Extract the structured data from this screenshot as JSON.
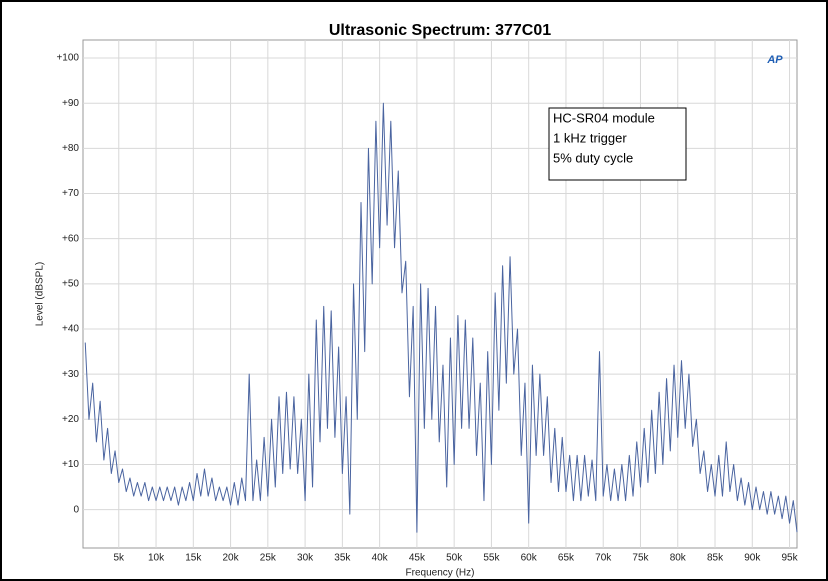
{
  "chart_data": {
    "type": "line",
    "title": "Ultrasonic Spectrum: 377C01",
    "xlabel": "Frequency (Hz)",
    "ylabel": "Level (dBSPL)",
    "logo": "AP",
    "annotation": [
      "HC-SR04 module",
      "1 kHz trigger",
      "5% duty cycle"
    ],
    "color": "#4a64a0",
    "grid": true,
    "xlim": [
      200,
      96000
    ],
    "ylim": [
      -8.5,
      104
    ],
    "xticks": [
      {
        "value": 5000,
        "label": "5k"
      },
      {
        "value": 10000,
        "label": "10k"
      },
      {
        "value": 15000,
        "label": "15k"
      },
      {
        "value": 20000,
        "label": "20k"
      },
      {
        "value": 25000,
        "label": "25k"
      },
      {
        "value": 30000,
        "label": "30k"
      },
      {
        "value": 35000,
        "label": "35k"
      },
      {
        "value": 40000,
        "label": "40k"
      },
      {
        "value": 45000,
        "label": "45k"
      },
      {
        "value": 50000,
        "label": "50k"
      },
      {
        "value": 55000,
        "label": "55k"
      },
      {
        "value": 60000,
        "label": "60k"
      },
      {
        "value": 65000,
        "label": "65k"
      },
      {
        "value": 70000,
        "label": "70k"
      },
      {
        "value": 75000,
        "label": "75k"
      },
      {
        "value": 80000,
        "label": "80k"
      },
      {
        "value": 85000,
        "label": "85k"
      },
      {
        "value": 90000,
        "label": "90k"
      },
      {
        "value": 95000,
        "label": "95k"
      }
    ],
    "yticks": [
      0,
      {
        "value": 10,
        "label": "+10"
      },
      {
        "value": 20,
        "label": "+20"
      },
      {
        "value": 30,
        "label": "+30"
      },
      {
        "value": 40,
        "label": "+40"
      },
      {
        "value": 50,
        "label": "+50"
      },
      {
        "value": 60,
        "label": "+60"
      },
      {
        "value": 70,
        "label": "+70"
      },
      {
        "value": 80,
        "label": "+80"
      },
      {
        "value": 90,
        "label": "+90"
      },
      {
        "value": 100,
        "label": "+100"
      }
    ],
    "x": [
      500,
      1000,
      1500,
      2000,
      2500,
      3000,
      3500,
      4000,
      4500,
      5000,
      5500,
      6000,
      6500,
      7000,
      7500,
      8000,
      8500,
      9000,
      9500,
      10000,
      10500,
      11000,
      11500,
      12000,
      12500,
      13000,
      13500,
      14000,
      14500,
      15000,
      15500,
      16000,
      16500,
      17000,
      17500,
      18000,
      18500,
      19000,
      19500,
      20000,
      20500,
      21000,
      21500,
      22000,
      22500,
      23000,
      23500,
      24000,
      24500,
      25000,
      25500,
      26000,
      26500,
      27000,
      27500,
      28000,
      28500,
      29000,
      29500,
      30000,
      30500,
      31000,
      31500,
      32000,
      32500,
      33000,
      33500,
      34000,
      34500,
      35000,
      35500,
      36000,
      36500,
      37000,
      37500,
      38000,
      38500,
      39000,
      39500,
      40000,
      40500,
      41000,
      41500,
      42000,
      42500,
      43000,
      43500,
      44000,
      44500,
      45000,
      45500,
      46000,
      46500,
      47000,
      47500,
      48000,
      48500,
      49000,
      49500,
      50000,
      50500,
      51000,
      51500,
      52000,
      52500,
      53000,
      53500,
      54000,
      54500,
      55000,
      55500,
      56000,
      56500,
      57000,
      57500,
      58000,
      58500,
      59000,
      59500,
      60000,
      60500,
      61000,
      61500,
      62000,
      62500,
      63000,
      63500,
      64000,
      64500,
      65000,
      65500,
      66000,
      66500,
      67000,
      67500,
      68000,
      68500,
      69000,
      69500,
      70000,
      70500,
      71000,
      71500,
      72000,
      72500,
      73000,
      73500,
      74000,
      74500,
      75000,
      75500,
      76000,
      76500,
      77000,
      77500,
      78000,
      78500,
      79000,
      79500,
      80000,
      80500,
      81000,
      81500,
      82000,
      82500,
      83000,
      83500,
      84000,
      84500,
      85000,
      85500,
      86000,
      86500,
      87000,
      87500,
      88000,
      88500,
      89000,
      89500,
      90000,
      90500,
      91000,
      91500,
      92000,
      92500,
      93000,
      93500,
      94000,
      94500,
      95000,
      95500,
      96000
    ],
    "values": [
      37,
      20,
      28,
      15,
      24,
      11,
      18,
      8,
      13,
      6,
      9,
      4,
      7,
      3,
      6,
      3,
      6,
      2,
      5,
      2,
      5,
      2,
      5,
      2,
      5,
      1,
      5,
      2,
      6,
      2,
      8,
      3,
      9,
      3,
      7,
      2,
      5,
      2,
      5,
      1,
      6,
      1,
      7,
      2,
      30,
      2,
      11,
      2,
      16,
      3,
      20,
      5,
      25,
      8,
      26,
      9,
      25,
      8,
      20,
      2,
      30,
      5,
      42,
      15,
      45,
      18,
      44,
      16,
      36,
      8,
      25,
      -1,
      50,
      20,
      68,
      35,
      80,
      50,
      86,
      58,
      90,
      63,
      86,
      58,
      75,
      48,
      55,
      25,
      45,
      -5,
      50,
      18,
      49,
      20,
      45,
      15,
      32,
      5,
      38,
      10,
      43,
      18,
      42,
      18,
      38,
      12,
      28,
      2,
      35,
      10,
      48,
      22,
      54,
      28,
      56,
      30,
      40,
      12,
      28,
      -3,
      32,
      12,
      30,
      12,
      25,
      6,
      18,
      4,
      16,
      4,
      12,
      2,
      12,
      2,
      12,
      3,
      11,
      2,
      35,
      3,
      10,
      2,
      9,
      2,
      10,
      2,
      12,
      3,
      15,
      5,
      18,
      6,
      22,
      8,
      26,
      10,
      29,
      13,
      32,
      16,
      33,
      18,
      30,
      14,
      20,
      8,
      13,
      4,
      10,
      3,
      12,
      3,
      15,
      4,
      10,
      2,
      7,
      1,
      6,
      0,
      5,
      0,
      4,
      -1,
      4,
      -1,
      3,
      -2,
      3,
      -3,
      2,
      -5
    ]
  }
}
